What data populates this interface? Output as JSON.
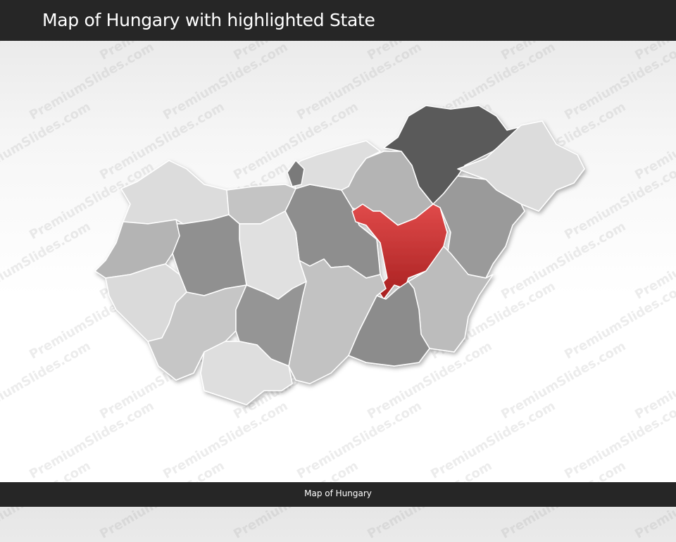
{
  "header": {
    "title": "Map of Hungary with highlighted State"
  },
  "footer": {
    "caption": "Map of Hungary"
  },
  "watermark": "PremiumSlides.com",
  "map": {
    "highlight_color": "#d0393a",
    "border_color": "#ffffff",
    "regions": [
      {
        "fill": "#dcdcdc"
      },
      {
        "fill": "#c4c4c4"
      },
      {
        "fill": "#8e8e8e"
      },
      {
        "fill": "#dedede"
      },
      {
        "fill": "#b4b4b4"
      },
      {
        "fill": "#5a5a5a"
      },
      {
        "fill": "#dcdcdc"
      },
      {
        "fill": "#9a9a9a"
      },
      {
        "fill": "#d0393a",
        "highlighted": true
      },
      {
        "fill": "#bcbcbc"
      },
      {
        "fill": "#8c8c8c"
      },
      {
        "fill": "#c2c2c2"
      },
      {
        "fill": "#e0e0e0"
      },
      {
        "fill": "#909090"
      },
      {
        "fill": "#b4b4b4"
      },
      {
        "fill": "#dadada"
      },
      {
        "fill": "#c6c6c6"
      },
      {
        "fill": "#959595"
      },
      {
        "fill": "#dedede"
      },
      {
        "fill": "#7a7a7a"
      }
    ]
  }
}
